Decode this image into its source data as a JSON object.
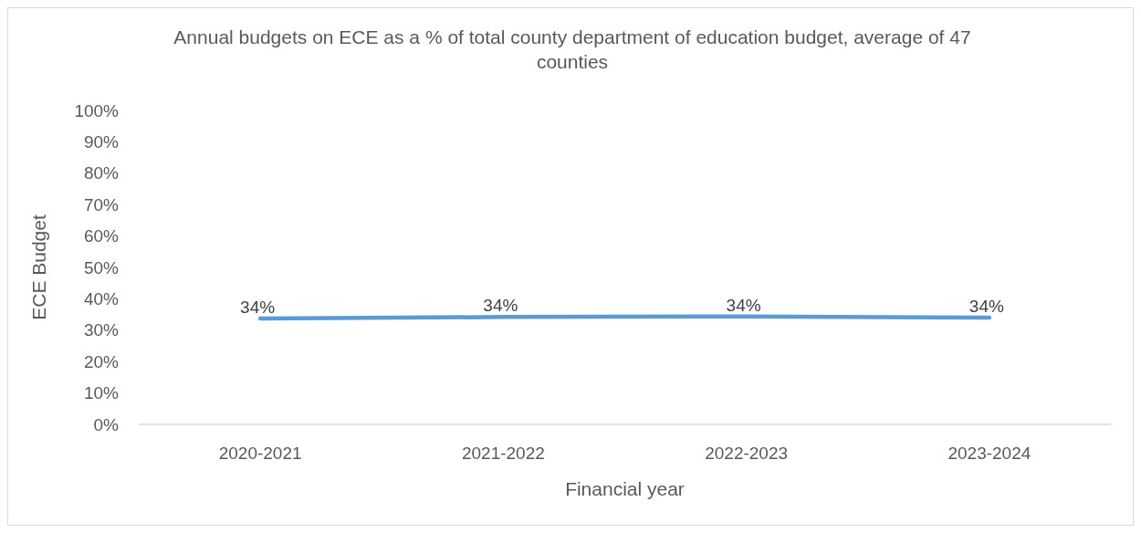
{
  "chart_data": {
    "type": "line",
    "title": "Annual budgets on ECE as a % of total county department of education budget, average of 47 counties",
    "xlabel": "Financial year",
    "ylabel": "ECE Budget",
    "categories": [
      "2020-2021",
      "2021-2022",
      "2022-2023",
      "2023-2024"
    ],
    "series": [
      {
        "color": "#5b9bd5",
        "values": [
          33.7,
          34.2,
          34.4,
          34.0
        ],
        "value_labels": [
          "34%",
          "34%",
          "34%",
          "34%"
        ]
      }
    ],
    "ylim": [
      0,
      100
    ],
    "yticks": [
      {
        "value": 0,
        "label": "0%"
      },
      {
        "value": 10,
        "label": "10%"
      },
      {
        "value": 20,
        "label": "20%"
      },
      {
        "value": 30,
        "label": "30%"
      },
      {
        "value": 40,
        "label": "40%"
      },
      {
        "value": 50,
        "label": "50%"
      },
      {
        "value": 60,
        "label": "60%"
      },
      {
        "value": 70,
        "label": "70%"
      },
      {
        "value": 80,
        "label": "80%"
      },
      {
        "value": 90,
        "label": "90%"
      },
      {
        "value": 100,
        "label": "100%"
      }
    ],
    "grid": false,
    "marker": "none",
    "line_style": "solid"
  }
}
